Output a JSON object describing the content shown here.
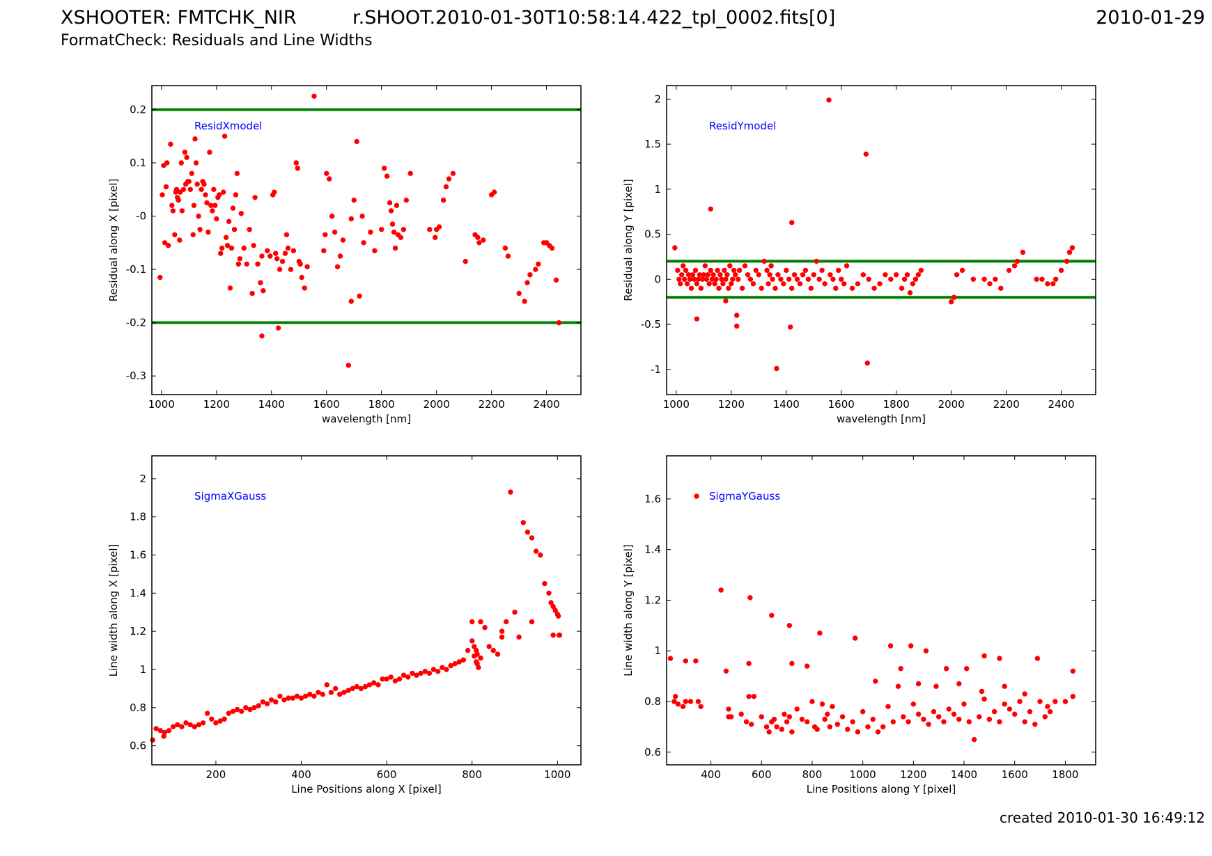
{
  "header": {
    "title": "XSHOOTER: FMTCHK_NIR",
    "filename": "r.SHOOT.2010-01-30T10:58:14.422_tpl_0002.fits[0]",
    "date": "2010-01-29",
    "subtitle": "FormatCheck: Residuals and Line Widths"
  },
  "footer": {
    "created": "created 2010-01-30 16:49:12"
  },
  "colors": {
    "points": "#ff0000",
    "threshold_lines": "#008000",
    "annotation": "#0000ff"
  },
  "chart_data": [
    {
      "type": "scatter",
      "annotation": "ResidXmodel",
      "xlabel": "wavelength [nm]",
      "ylabel": "Residual along X [pixel]",
      "xlim": [
        965,
        2525
      ],
      "ylim": [
        -0.335,
        0.245
      ],
      "xticks": [
        1000,
        1200,
        1400,
        1600,
        1800,
        2000,
        2200,
        2400
      ],
      "yticks": [
        0.2,
        0.1,
        0.0,
        -0.1,
        -0.2,
        -0.3
      ],
      "ytick_labels": [
        "0.2",
        "0.1",
        "-0",
        "-0.1",
        "-0.2",
        "-0.3"
      ],
      "hlines": [
        0.2,
        -0.2
      ],
      "x": [
        995,
        1003,
        1008,
        1012,
        1017,
        1020,
        1025,
        1033,
        1038,
        1042,
        1048,
        1052,
        1055,
        1058,
        1062,
        1066,
        1068,
        1072,
        1075,
        1080,
        1085,
        1088,
        1092,
        1096,
        1100,
        1105,
        1110,
        1115,
        1118,
        1122,
        1126,
        1130,
        1135,
        1140,
        1145,
        1150,
        1155,
        1160,
        1165,
        1170,
        1175,
        1180,
        1185,
        1190,
        1195,
        1200,
        1205,
        1210,
        1215,
        1220,
        1225,
        1230,
        1235,
        1240,
        1245,
        1250,
        1255,
        1260,
        1265,
        1270,
        1275,
        1280,
        1285,
        1290,
        1300,
        1310,
        1320,
        1330,
        1335,
        1340,
        1350,
        1360,
        1365,
        1370,
        1385,
        1395,
        1405,
        1410,
        1415,
        1420,
        1430,
        1440,
        1450,
        1455,
        1460,
        1470,
        1480,
        1490,
        1495,
        1500,
        1505,
        1510,
        1520,
        1530,
        1590,
        1595,
        1600,
        1610,
        1620,
        1630,
        1640,
        1650,
        1660,
        1690,
        1700,
        1710,
        1720,
        1730,
        1735,
        1760,
        1775,
        1800,
        1810,
        1820,
        1830,
        1835,
        1840,
        1845,
        1850,
        1855,
        1860,
        1870,
        1880,
        1890,
        1905,
        1975,
        1995,
        2000,
        2010,
        2025,
        2035,
        2045,
        2060,
        2105,
        2140,
        2150,
        2155,
        2170,
        2200,
        2210,
        2250,
        2260,
        2300,
        2320,
        2330,
        2340,
        2360,
        2370,
        2390,
        2400,
        2410,
        2420,
        2435,
        2445,
        1555,
        1690,
        1680,
        1365,
        1425
      ],
      "y": [
        -0.115,
        0.04,
        0.095,
        -0.05,
        0.055,
        0.1,
        -0.055,
        0.135,
        0.02,
        0.01,
        -0.035,
        0.045,
        0.05,
        0.035,
        0.03,
        -0.045,
        0.045,
        0.1,
        0.01,
        0.05,
        0.12,
        0.06,
        0.11,
        0.065,
        0.065,
        0.05,
        0.08,
        -0.035,
        0.02,
        0.145,
        0.1,
        0.06,
        0.0,
        -0.025,
        0.05,
        0.065,
        0.06,
        0.04,
        0.025,
        -0.03,
        0.12,
        0.02,
        0.01,
        0.05,
        0.02,
        -0.005,
        0.035,
        0.04,
        -0.07,
        -0.06,
        0.045,
        0.15,
        -0.04,
        -0.055,
        -0.01,
        -0.135,
        -0.06,
        0.015,
        -0.025,
        0.04,
        0.08,
        -0.09,
        -0.08,
        0.005,
        -0.06,
        -0.09,
        -0.025,
        -0.145,
        -0.055,
        0.035,
        -0.09,
        -0.125,
        -0.075,
        -0.14,
        -0.065,
        -0.075,
        0.04,
        0.045,
        -0.07,
        -0.08,
        -0.1,
        -0.085,
        -0.07,
        -0.035,
        -0.06,
        -0.1,
        -0.065,
        0.1,
        0.09,
        -0.085,
        -0.09,
        -0.115,
        -0.135,
        -0.095,
        -0.065,
        -0.035,
        0.08,
        0.07,
        0.0,
        -0.03,
        -0.095,
        -0.075,
        -0.045,
        -0.005,
        0.03,
        0.14,
        -0.15,
        0.0,
        -0.05,
        -0.03,
        -0.065,
        -0.025,
        0.09,
        0.075,
        0.025,
        0.01,
        -0.015,
        -0.03,
        -0.06,
        0.02,
        -0.035,
        -0.04,
        -0.025,
        0.03,
        0.08,
        -0.025,
        -0.04,
        -0.025,
        -0.02,
        0.03,
        0.055,
        0.07,
        0.08,
        -0.085,
        -0.035,
        -0.04,
        -0.05,
        -0.045,
        0.04,
        0.045,
        -0.06,
        -0.075,
        -0.145,
        -0.16,
        -0.125,
        -0.11,
        -0.1,
        -0.09,
        -0.05,
        -0.05,
        -0.055,
        -0.06,
        -0.12,
        -0.2,
        0.225,
        -0.16,
        -0.28,
        -0.225,
        -0.21
      ]
    },
    {
      "type": "scatter",
      "annotation": "ResidYmodel",
      "xlabel": "wavelength [nm]",
      "ylabel": "Residual along Y [pixel]",
      "xlim": [
        965,
        2525
      ],
      "ylim": [
        -1.28,
        2.15
      ],
      "xticks": [
        1000,
        1200,
        1400,
        1600,
        1800,
        2000,
        2200,
        2400
      ],
      "yticks": [
        2,
        1.5,
        1,
        0.5,
        0,
        -0.5,
        -1
      ],
      "ytick_labels": [
        "2",
        "1.5",
        "1",
        "0.5",
        "0",
        "-0.5",
        "-1"
      ],
      "hlines": [
        0.2,
        -0.2
      ],
      "x": [
        995,
        1005,
        1010,
        1015,
        1020,
        1025,
        1030,
        1035,
        1040,
        1045,
        1050,
        1055,
        1060,
        1065,
        1070,
        1075,
        1080,
        1085,
        1090,
        1095,
        1100,
        1105,
        1110,
        1115,
        1120,
        1125,
        1130,
        1135,
        1140,
        1145,
        1150,
        1155,
        1160,
        1165,
        1170,
        1175,
        1180,
        1185,
        1190,
        1195,
        1200,
        1205,
        1210,
        1215,
        1220,
        1225,
        1230,
        1240,
        1250,
        1260,
        1270,
        1280,
        1290,
        1300,
        1310,
        1320,
        1330,
        1335,
        1340,
        1345,
        1350,
        1360,
        1370,
        1380,
        1390,
        1400,
        1410,
        1420,
        1430,
        1440,
        1450,
        1460,
        1470,
        1480,
        1490,
        1500,
        1510,
        1520,
        1530,
        1540,
        1560,
        1570,
        1580,
        1590,
        1600,
        1610,
        1620,
        1640,
        1660,
        1680,
        1700,
        1720,
        1740,
        1760,
        1780,
        1800,
        1820,
        1830,
        1840,
        1850,
        1860,
        1870,
        1880,
        1890,
        2000,
        2010,
        2020,
        2040,
        2080,
        2120,
        2140,
        2160,
        2180,
        2210,
        2230,
        2240,
        2260,
        2310,
        2330,
        2350,
        2370,
        2380,
        2400,
        2420,
        2430,
        2440,
        1125,
        1420,
        1365,
        1690,
        1695,
        1555,
        1075,
        1220,
        1180,
        1415
      ],
      "y": [
        0.35,
        0.1,
        0.0,
        -0.05,
        0.05,
        0.15,
        0.0,
        0.1,
        -0.05,
        0.05,
        0.0,
        -0.1,
        0.05,
        0.0,
        0.1,
        -0.05,
        0.0,
        0.05,
        -0.1,
        0.0,
        0.05,
        0.15,
        0.0,
        0.05,
        -0.05,
        0.1,
        0.0,
        0.05,
        -0.05,
        0.0,
        0.1,
        -0.1,
        0.05,
        0.0,
        -0.05,
        0.1,
        0.0,
        0.05,
        -0.1,
        0.15,
        -0.05,
        0.0,
        0.1,
        0.05,
        -0.4,
        0.0,
        0.1,
        -0.1,
        0.15,
        0.05,
        0.0,
        -0.05,
        0.1,
        0.05,
        -0.1,
        0.2,
        0.1,
        -0.05,
        0.05,
        0.15,
        0.0,
        -0.1,
        0.05,
        0.0,
        -0.05,
        0.1,
        0.0,
        -0.1,
        0.05,
        0.0,
        -0.05,
        0.05,
        0.1,
        0.0,
        -0.1,
        0.05,
        0.2,
        0.0,
        0.1,
        -0.05,
        0.05,
        0.0,
        -0.1,
        0.1,
        0.0,
        -0.05,
        0.15,
        -0.1,
        -0.05,
        0.05,
        0.0,
        -0.1,
        -0.05,
        0.05,
        0.0,
        0.05,
        -0.1,
        0.0,
        0.05,
        -0.15,
        -0.05,
        0.0,
        0.05,
        0.1,
        -0.25,
        -0.2,
        0.05,
        0.1,
        0.0,
        0.0,
        -0.05,
        0.0,
        -0.1,
        0.1,
        0.15,
        0.2,
        0.3,
        0.0,
        0.0,
        -0.05,
        -0.05,
        0.0,
        0.1,
        0.2,
        0.3,
        0.35,
        0.78,
        0.63,
        -0.99,
        1.39,
        -0.93,
        1.99,
        -0.44,
        -0.52,
        -0.24,
        -0.53
      ]
    },
    {
      "type": "scatter",
      "annotation": "SigmaXGauss",
      "xlabel": "Line Positions along X [pixel]",
      "ylabel": "Line width along X [pixel]",
      "xlim": [
        50,
        1055
      ],
      "ylim": [
        0.5,
        2.12
      ],
      "xticks": [
        200,
        400,
        600,
        800,
        1000
      ],
      "yticks": [
        2,
        1.8,
        1.6,
        1.4,
        1.2,
        1,
        0.8,
        0.6
      ],
      "ytick_labels": [
        "2",
        "1.8",
        "1.6",
        "1.4",
        "1.2",
        "1",
        "0.8",
        "0.6"
      ],
      "hlines": [],
      "x": [
        52,
        60,
        70,
        78,
        80,
        90,
        100,
        110,
        120,
        130,
        140,
        150,
        160,
        170,
        180,
        190,
        200,
        210,
        220,
        230,
        240,
        250,
        260,
        270,
        280,
        290,
        300,
        310,
        320,
        330,
        340,
        350,
        360,
        370,
        380,
        390,
        400,
        410,
        420,
        430,
        440,
        450,
        460,
        470,
        480,
        490,
        500,
        510,
        520,
        530,
        540,
        550,
        560,
        570,
        580,
        590,
        600,
        610,
        620,
        630,
        640,
        650,
        660,
        670,
        680,
        690,
        700,
        710,
        720,
        730,
        740,
        750,
        760,
        770,
        780,
        790,
        800,
        805,
        810,
        812,
        815,
        820,
        830,
        840,
        850,
        860,
        870,
        880,
        890,
        900,
        910,
        920,
        930,
        940,
        950,
        960,
        970,
        980,
        985,
        990,
        995,
        1000,
        1002,
        1004,
        1005,
        800,
        805,
        810,
        812,
        820,
        870,
        940,
        990
      ],
      "y": [
        0.63,
        0.69,
        0.68,
        0.65,
        0.67,
        0.68,
        0.7,
        0.71,
        0.7,
        0.72,
        0.71,
        0.7,
        0.71,
        0.72,
        0.77,
        0.74,
        0.72,
        0.73,
        0.74,
        0.77,
        0.78,
        0.79,
        0.78,
        0.8,
        0.79,
        0.8,
        0.81,
        0.83,
        0.82,
        0.84,
        0.83,
        0.86,
        0.84,
        0.85,
        0.85,
        0.86,
        0.85,
        0.86,
        0.87,
        0.86,
        0.88,
        0.87,
        0.92,
        0.88,
        0.9,
        0.87,
        0.88,
        0.89,
        0.9,
        0.91,
        0.9,
        0.91,
        0.92,
        0.93,
        0.92,
        0.95,
        0.95,
        0.96,
        0.94,
        0.95,
        0.97,
        0.96,
        0.98,
        0.97,
        0.98,
        0.99,
        0.98,
        1.0,
        0.99,
        1.01,
        1.0,
        1.02,
        1.03,
        1.04,
        1.05,
        1.1,
        1.25,
        1.07,
        1.04,
        1.03,
        1.01,
        1.25,
        1.22,
        1.12,
        1.1,
        1.08,
        1.2,
        1.25,
        1.93,
        1.3,
        1.17,
        1.77,
        1.72,
        1.69,
        1.62,
        1.6,
        1.45,
        1.4,
        1.35,
        1.33,
        1.31,
        1.29,
        1.28,
        1.18,
        1.18,
        1.15,
        1.12,
        1.1,
        1.08,
        1.06,
        1.17,
        1.25,
        1.18
      ]
    },
    {
      "type": "scatter",
      "annotation": "SigmaYGauss",
      "xlabel": "Line Positions along Y [pixel]",
      "ylabel": "Line width along Y [pixel]",
      "xlim": [
        225,
        1920
      ],
      "ylim": [
        0.55,
        1.77
      ],
      "xticks": [
        400,
        600,
        800,
        1000,
        1200,
        1400,
        1600,
        1800
      ],
      "yticks": [
        1.6,
        1.4,
        1.2,
        1,
        0.8,
        0.6
      ],
      "ytick_labels": [
        "1.6",
        "1.4",
        "1.2",
        "1",
        "0.8",
        "0.6"
      ],
      "hlines": [],
      "legend_marker": true,
      "x": [
        240,
        255,
        260,
        270,
        290,
        300,
        320,
        340,
        360,
        440,
        460,
        470,
        480,
        520,
        540,
        550,
        560,
        570,
        600,
        620,
        630,
        640,
        650,
        660,
        680,
        690,
        700,
        710,
        720,
        740,
        760,
        780,
        800,
        810,
        820,
        840,
        850,
        860,
        870,
        880,
        900,
        920,
        940,
        960,
        980,
        1000,
        1020,
        1040,
        1060,
        1080,
        1100,
        1120,
        1140,
        1160,
        1180,
        1200,
        1220,
        1240,
        1260,
        1280,
        1300,
        1320,
        1340,
        1360,
        1380,
        1400,
        1420,
        1440,
        1460,
        1480,
        1500,
        1520,
        1540,
        1560,
        1580,
        1600,
        1620,
        1640,
        1660,
        1680,
        1700,
        1720,
        1740,
        1760,
        1830,
        1830,
        440,
        555,
        640,
        710,
        830,
        970,
        1110,
        1190,
        1250,
        1330,
        1410,
        1480,
        1540,
        1690,
        300,
        350,
        470,
        550,
        720,
        780,
        1050,
        1150,
        1220,
        1290,
        1380,
        1470,
        1560,
        1640,
        1730,
        1800
      ],
      "y": [
        0.97,
        0.8,
        0.82,
        0.79,
        0.78,
        0.96,
        0.8,
        0.96,
        0.78,
        1.24,
        0.92,
        0.77,
        0.74,
        0.75,
        0.72,
        0.95,
        0.71,
        0.82,
        0.74,
        0.7,
        0.68,
        0.72,
        0.73,
        0.7,
        0.69,
        0.75,
        0.72,
        0.74,
        0.68,
        0.77,
        0.73,
        0.72,
        0.8,
        0.7,
        0.69,
        0.79,
        0.73,
        0.75,
        0.7,
        0.78,
        0.71,
        0.74,
        0.69,
        0.72,
        0.68,
        0.76,
        0.7,
        0.73,
        0.68,
        0.7,
        0.78,
        0.72,
        0.86,
        0.74,
        0.72,
        0.79,
        0.75,
        0.73,
        0.71,
        0.76,
        0.74,
        0.72,
        0.77,
        0.75,
        0.73,
        0.79,
        0.72,
        0.65,
        0.74,
        0.81,
        0.73,
        0.76,
        0.72,
        0.79,
        0.77,
        0.75,
        0.8,
        0.72,
        0.76,
        0.71,
        0.8,
        0.74,
        0.76,
        0.8,
        0.92,
        0.82,
        1.24,
        1.21,
        1.14,
        1.1,
        1.07,
        1.05,
        1.02,
        1.02,
        1.0,
        0.93,
        0.93,
        0.98,
        0.97,
        0.97,
        0.8,
        0.8,
        0.74,
        0.82,
        0.95,
        0.94,
        0.88,
        0.93,
        0.87,
        0.86,
        0.87,
        0.84,
        0.86,
        0.83,
        0.78,
        0.8
      ]
    }
  ]
}
